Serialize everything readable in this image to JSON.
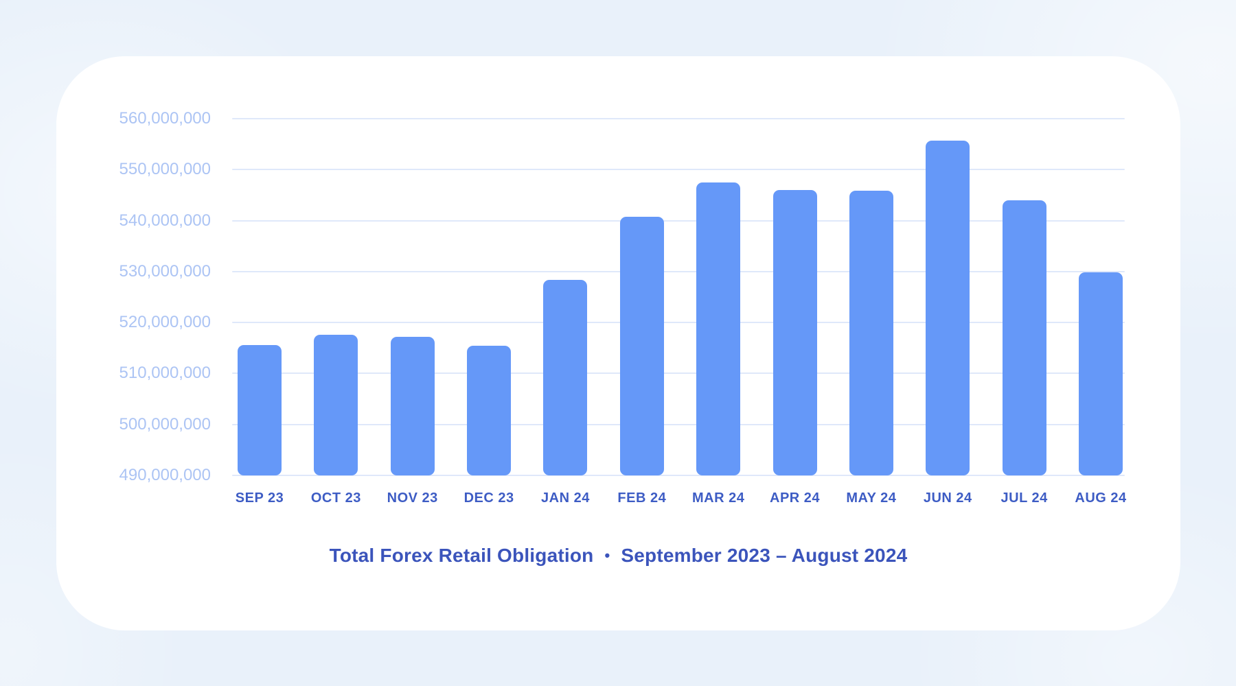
{
  "colors": {
    "page_background": "#e9f1fa",
    "card_background": "#ffffff",
    "bar_fill": "#6598f8",
    "gridline": "#dfe8fa",
    "y_axis_label": "#acc4f4",
    "x_axis_label": "#3d5cc4",
    "title_text": "#3b54bb"
  },
  "title": {
    "main": "Total Forex Retail Obligation",
    "separator": "•",
    "range": "September 2023 – August 2024"
  },
  "chart_data": {
    "type": "bar",
    "title": "Total Forex Retail Obligation • September 2023 – August 2024",
    "categories": [
      "SEP 23",
      "OCT 23",
      "NOV 23",
      "DEC 23",
      "JAN 24",
      "FEB 24",
      "MAR 24",
      "APR 24",
      "MAY 24",
      "JUN 24",
      "JUL 24",
      "AUG 24"
    ],
    "values": [
      515600000,
      517600000,
      517200000,
      515400000,
      528400000,
      540800000,
      547500000,
      546000000,
      545900000,
      555700000,
      544000000,
      529900000
    ],
    "xlabel": "",
    "ylabel": "",
    "ylim": [
      490000000,
      560000000
    ],
    "ytick_step": 10000000,
    "yticks_top_down": [
      560000000,
      550000000,
      540000000,
      530000000,
      520000000,
      510000000,
      500000000,
      490000000
    ],
    "grid": "horizontal-only",
    "legend": "none",
    "bar_color": "#6598f8",
    "bar_corner_radius_px": 9
  }
}
